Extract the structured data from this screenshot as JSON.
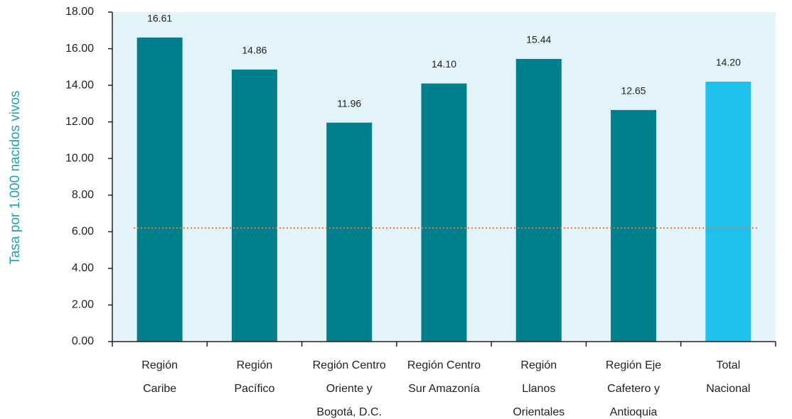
{
  "chart_data": {
    "type": "bar",
    "y_label": "Tasa por 1.000 nacidos vivos",
    "categories": [
      [
        "Región",
        "Caribe"
      ],
      [
        "Región",
        "Pacífico"
      ],
      [
        "Región Centro",
        "Oriente y",
        "Bogotá, D.C."
      ],
      [
        "Región Centro",
        "Sur Amazonía"
      ],
      [
        "Región",
        "Llanos",
        "Orientales"
      ],
      [
        "Región Eje",
        "Cafetero y",
        "Antioquia"
      ],
      [
        "Total",
        "Nacional"
      ]
    ],
    "values": [
      16.61,
      14.86,
      11.96,
      14.1,
      15.44,
      12.65,
      14.2
    ],
    "value_labels": [
      "16.61",
      "14.86",
      "11.96",
      "14.10",
      "15.44",
      "12.65",
      "14.20"
    ],
    "colors": [
      "#00808c",
      "#00808c",
      "#00808c",
      "#00808c",
      "#00808c",
      "#00808c",
      "#1ec0ec"
    ],
    "ylim": [
      0,
      18
    ],
    "yticks": [
      {
        "value": 0,
        "label": "0.00"
      },
      {
        "value": 2,
        "label": "2.00"
      },
      {
        "value": 4,
        "label": "4.00"
      },
      {
        "value": 6,
        "label": "6.00"
      },
      {
        "value": 8,
        "label": "8.00"
      },
      {
        "value": 10,
        "label": "10.00"
      },
      {
        "value": 12,
        "label": "12.00"
      },
      {
        "value": 14,
        "label": "14.00"
      },
      {
        "value": 16,
        "label": "16.00"
      },
      {
        "value": 18,
        "label": "18.00"
      }
    ],
    "reference_line": {
      "value": 6.2,
      "color": "#e8782a"
    },
    "plot_background": "#e3f3fa"
  }
}
